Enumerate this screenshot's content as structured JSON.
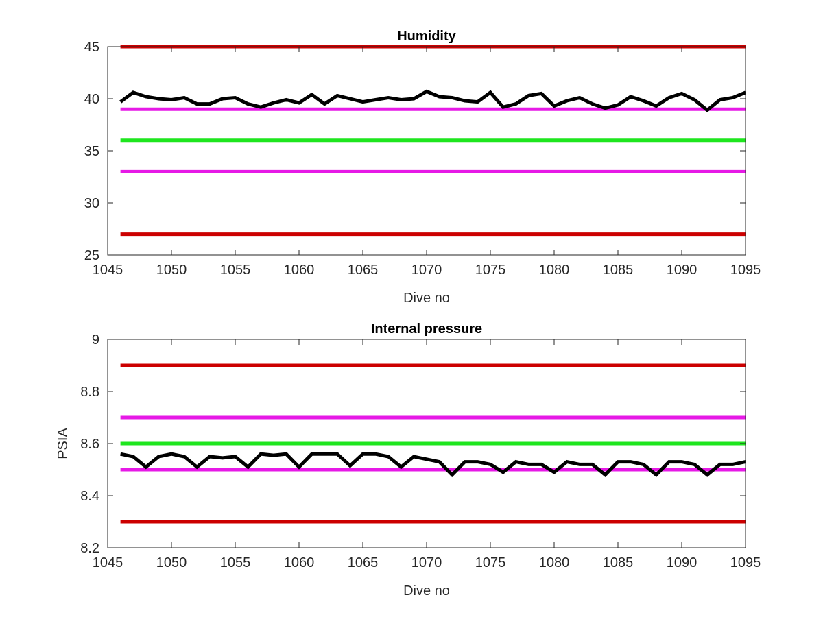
{
  "chart_data": [
    {
      "type": "line",
      "title": "Humidity",
      "xlabel": "Dive no",
      "ylabel": "",
      "xlim": [
        1045,
        1095
      ],
      "ylim": [
        25,
        45
      ],
      "xticks": [
        1045,
        1050,
        1055,
        1060,
        1065,
        1070,
        1075,
        1080,
        1085,
        1090,
        1095
      ],
      "yticks": [
        25,
        30,
        35,
        40,
        45
      ],
      "grid": false,
      "reference_lines": [
        {
          "y": 45,
          "color": "#cc0000"
        },
        {
          "y": 39,
          "color": "#e619e6"
        },
        {
          "y": 36,
          "color": "#1ee61e"
        },
        {
          "y": 33,
          "color": "#e619e6"
        },
        {
          "y": 27,
          "color": "#cc0000"
        }
      ],
      "series": [
        {
          "color": "#000000",
          "x": [
            1046,
            1047,
            1048,
            1049,
            1050,
            1051,
            1052,
            1053,
            1054,
            1055,
            1056,
            1057,
            1058,
            1059,
            1060,
            1061,
            1062,
            1063,
            1064,
            1065,
            1066,
            1067,
            1068,
            1069,
            1070,
            1071,
            1072,
            1073,
            1074,
            1075,
            1076,
            1077,
            1078,
            1079,
            1080,
            1081,
            1082,
            1083,
            1084,
            1085,
            1086,
            1087,
            1088,
            1089,
            1090,
            1091,
            1092,
            1093,
            1094,
            1095
          ],
          "values": [
            39.7,
            40.6,
            40.2,
            40.0,
            39.9,
            40.1,
            39.5,
            39.5,
            40.0,
            40.1,
            39.5,
            39.2,
            39.6,
            39.9,
            39.6,
            40.4,
            39.5,
            40.3,
            40.0,
            39.7,
            39.9,
            40.1,
            39.9,
            40.0,
            40.7,
            40.2,
            40.1,
            39.8,
            39.7,
            40.6,
            39.2,
            39.5,
            40.3,
            40.5,
            39.3,
            39.8,
            40.1,
            39.5,
            39.1,
            39.4,
            40.2,
            39.8,
            39.3,
            40.1,
            40.5,
            39.9,
            38.9,
            39.9,
            40.1,
            40.6
          ]
        }
      ]
    },
    {
      "type": "line",
      "title": "Internal pressure",
      "xlabel": "Dive no",
      "ylabel": "PSIA",
      "xlim": [
        1045,
        1095
      ],
      "ylim": [
        8.2,
        9.0
      ],
      "xticks": [
        1045,
        1050,
        1055,
        1060,
        1065,
        1070,
        1075,
        1080,
        1085,
        1090,
        1095
      ],
      "yticks": [
        8.2,
        8.4,
        8.6,
        8.8,
        9
      ],
      "ytick_labels": [
        "8.2",
        "8.4",
        "8.6",
        "8.8",
        "9"
      ],
      "grid": false,
      "reference_lines": [
        {
          "y": 8.9,
          "color": "#cc0000"
        },
        {
          "y": 8.7,
          "color": "#e619e6"
        },
        {
          "y": 8.6,
          "color": "#1ee61e"
        },
        {
          "y": 8.5,
          "color": "#e619e6"
        },
        {
          "y": 8.3,
          "color": "#cc0000"
        }
      ],
      "series": [
        {
          "color": "#000000",
          "x": [
            1046,
            1047,
            1048,
            1049,
            1050,
            1051,
            1052,
            1053,
            1054,
            1055,
            1056,
            1057,
            1058,
            1059,
            1060,
            1061,
            1062,
            1063,
            1064,
            1065,
            1066,
            1067,
            1068,
            1069,
            1070,
            1071,
            1072,
            1073,
            1074,
            1075,
            1076,
            1077,
            1078,
            1079,
            1080,
            1081,
            1082,
            1083,
            1084,
            1085,
            1086,
            1087,
            1088,
            1089,
            1090,
            1091,
            1092,
            1093,
            1094,
            1095
          ],
          "values": [
            8.56,
            8.55,
            8.51,
            8.55,
            8.56,
            8.55,
            8.51,
            8.55,
            8.545,
            8.55,
            8.51,
            8.56,
            8.555,
            8.56,
            8.51,
            8.56,
            8.56,
            8.56,
            8.515,
            8.56,
            8.56,
            8.55,
            8.51,
            8.55,
            8.54,
            8.53,
            8.48,
            8.53,
            8.53,
            8.52,
            8.49,
            8.53,
            8.52,
            8.52,
            8.49,
            8.53,
            8.52,
            8.52,
            8.48,
            8.53,
            8.53,
            8.52,
            8.48,
            8.53,
            8.53,
            8.52,
            8.48,
            8.52,
            8.52,
            8.53
          ]
        }
      ]
    }
  ]
}
